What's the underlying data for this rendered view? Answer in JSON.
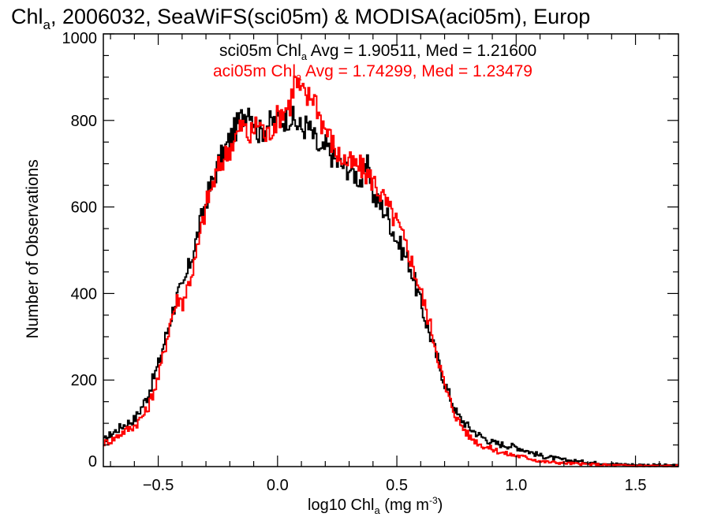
{
  "chart_data": {
    "type": "line",
    "title": "Chl",
    "title_sub": "a",
    "title_rest": ", 2006032, SeaWiFS(sci05m) & MODISA(aci05m), Europ",
    "xlabel": "log10 Chl",
    "xlabel_sub": "a",
    "xlabel_unit": " (mg m",
    "xlabel_unit_sup": "-3",
    "xlabel_close": ")",
    "ylabel": "Number of Observations",
    "xlim": [
      -0.73,
      1.68
    ],
    "ylim": [
      0,
      1000
    ],
    "xticks": [
      "−0.5",
      "0.0",
      "0.5",
      "1.0",
      "1.5"
    ],
    "xtick_values": [
      -0.5,
      0.0,
      0.5,
      1.0,
      1.5
    ],
    "yticks": [
      "0",
      "200",
      "400",
      "600",
      "800",
      "1000"
    ],
    "ytick_values": [
      0,
      200,
      400,
      600,
      800,
      1000
    ],
    "colors": {
      "sci05m": "#000000",
      "aci05m": "#ff0000",
      "axes": "#000000"
    },
    "annotations": [
      {
        "name": "sci05m",
        "color": "#000000",
        "pre": "sci05m Chl",
        "sub": "a",
        "post": " Avg = 1.90511, Med = 1.21600"
      },
      {
        "name": "aci05m",
        "color": "#ff0000",
        "pre": "aci05m Chl",
        "sub": "a",
        "post": " Avg = 1.74299, Med = 1.23479"
      }
    ],
    "series": [
      {
        "color": "#000000",
        "x": [
          -0.73,
          -0.7,
          -0.65,
          -0.6,
          -0.55,
          -0.5,
          -0.45,
          -0.42,
          -0.4,
          -0.35,
          -0.3,
          -0.25,
          -0.2,
          -0.15,
          -0.12,
          -0.1,
          -0.08,
          -0.05,
          0.0,
          0.05,
          0.08,
          0.1,
          0.12,
          0.15,
          0.18,
          0.2,
          0.25,
          0.3,
          0.35,
          0.38,
          0.4,
          0.45,
          0.5,
          0.55,
          0.6,
          0.65,
          0.7,
          0.75,
          0.8,
          0.85,
          0.9,
          0.95,
          1.0,
          1.05,
          1.1,
          1.2,
          1.3,
          1.4,
          1.5,
          1.6,
          1.68
        ],
        "y": [
          60,
          75,
          95,
          110,
          160,
          240,
          345,
          400,
          410,
          510,
          620,
          700,
          760,
          810,
          835,
          800,
          770,
          790,
          800,
          810,
          790,
          780,
          790,
          760,
          720,
          740,
          700,
          690,
          660,
          700,
          620,
          590,
          520,
          470,
          370,
          280,
          190,
          120,
          90,
          70,
          55,
          50,
          45,
          35,
          25,
          15,
          10,
          6,
          4,
          3,
          2
        ]
      },
      {
        "color": "#ff0000",
        "x": [
          -0.73,
          -0.7,
          -0.65,
          -0.6,
          -0.55,
          -0.5,
          -0.45,
          -0.42,
          -0.4,
          -0.35,
          -0.3,
          -0.25,
          -0.2,
          -0.15,
          -0.12,
          -0.1,
          -0.08,
          -0.05,
          0.0,
          0.05,
          0.07,
          0.09,
          0.12,
          0.15,
          0.18,
          0.2,
          0.25,
          0.3,
          0.35,
          0.38,
          0.4,
          0.45,
          0.5,
          0.55,
          0.6,
          0.65,
          0.7,
          0.75,
          0.8,
          0.85,
          0.9,
          0.95,
          1.0,
          1.05,
          1.1,
          1.2,
          1.3,
          1.4,
          1.5,
          1.6,
          1.68
        ],
        "y": [
          55,
          60,
          80,
          95,
          130,
          210,
          340,
          390,
          380,
          470,
          610,
          690,
          740,
          790,
          760,
          780,
          800,
          760,
          810,
          840,
          895,
          870,
          850,
          860,
          800,
          780,
          720,
          700,
          690,
          670,
          660,
          610,
          560,
          490,
          400,
          300,
          180,
          110,
          70,
          50,
          40,
          30,
          25,
          20,
          12,
          8,
          5,
          3,
          2,
          1,
          1
        ]
      }
    ]
  }
}
